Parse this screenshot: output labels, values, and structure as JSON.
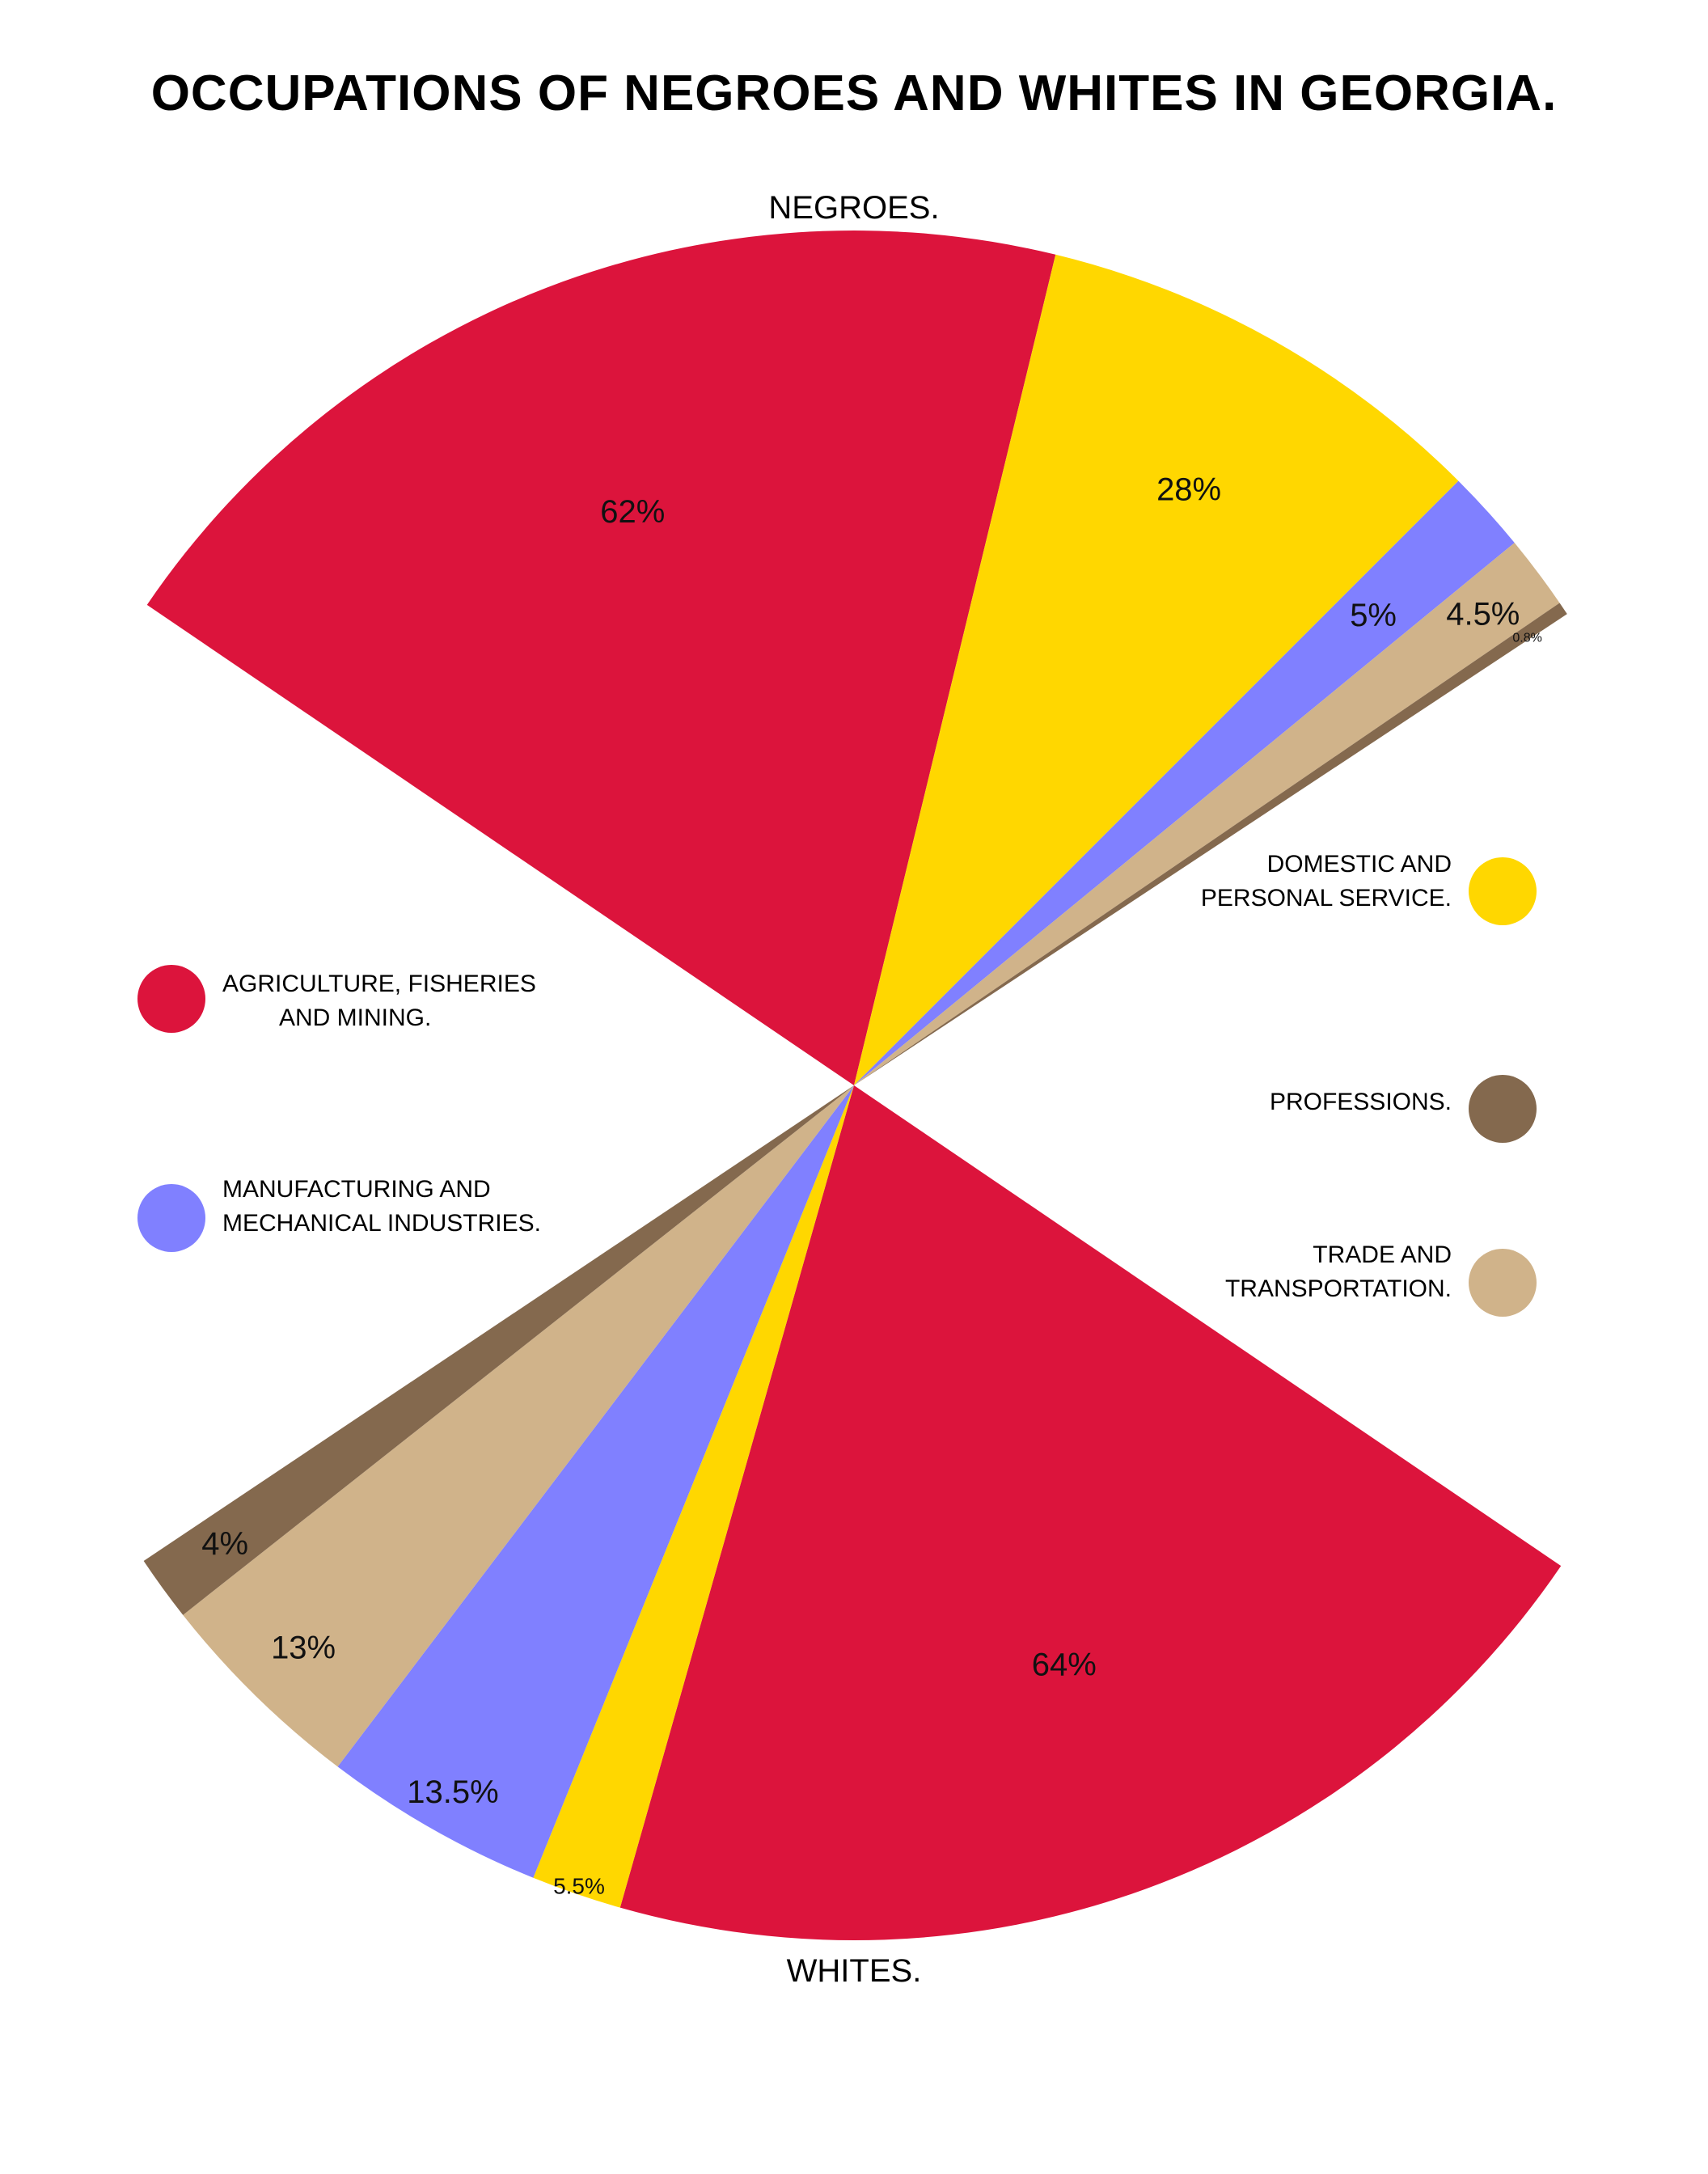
{
  "chart_data": {
    "type": "pie",
    "title": "OCCUPATIONS OF NEGROES AND WHITES IN GEORGIA.",
    "groups": [
      {
        "name": "NEGROES.",
        "slices": [
          {
            "category": "AGRICULTURE, FISHERIES AND MINING.",
            "value": 62,
            "label": "62%"
          },
          {
            "category": "DOMESTIC AND PERSONAL SERVICE.",
            "value": 28,
            "label": "28%"
          },
          {
            "category": "MANUFACTURING AND MECHANICAL INDUSTRIES.",
            "value": 5,
            "label": "5%"
          },
          {
            "category": "TRADE AND TRANSPORTATION.",
            "value": 4.5,
            "label": "4.5%"
          },
          {
            "category": "PROFESSIONS.",
            "value": 0.8,
            "label": "0.8%"
          }
        ]
      },
      {
        "name": "WHITES.",
        "slices": [
          {
            "category": "AGRICULTURE, FISHERIES AND MINING.",
            "value": 64,
            "label": "64%"
          },
          {
            "category": "DOMESTIC AND PERSONAL SERVICE.",
            "value": 5.5,
            "label": "5.5%"
          },
          {
            "category": "MANUFACTURING AND MECHANICAL INDUSTRIES.",
            "value": 13.5,
            "label": "13.5%"
          },
          {
            "category": "TRADE AND TRANSPORTATION.",
            "value": 13,
            "label": "13%"
          },
          {
            "category": "PROFESSIONS.",
            "value": 4,
            "label": "4%"
          }
        ]
      }
    ],
    "legend": [
      {
        "category": "AGRICULTURE, FISHERIES AND MINING.",
        "lines": [
          "AGRICULTURE, FISHERIES",
          "AND MINING."
        ],
        "color": "#DC143C",
        "side": "left"
      },
      {
        "category": "MANUFACTURING AND MECHANICAL INDUSTRIES.",
        "lines": [
          "MANUFACTURING AND",
          "MECHANICAL INDUSTRIES."
        ],
        "color": "#8080FF",
        "side": "left"
      },
      {
        "category": "DOMESTIC AND PERSONAL SERVICE.",
        "lines": [
          "DOMESTIC AND",
          "PERSONAL SERVICE."
        ],
        "color": "#FFD700",
        "side": "right"
      },
      {
        "category": "PROFESSIONS.",
        "lines": [
          "PROFESSIONS."
        ],
        "color": "#84694E",
        "side": "right"
      },
      {
        "category": "TRADE AND TRANSPORTATION.",
        "lines": [
          "TRADE AND",
          "TRANSPORTATION."
        ],
        "color": "#D0B38A",
        "side": "right"
      }
    ]
  }
}
